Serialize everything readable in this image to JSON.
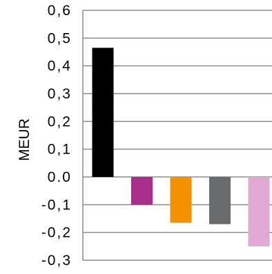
{
  "chart_data": {
    "type": "bar",
    "title": "",
    "xlabel": "",
    "ylabel": "MEUR",
    "ylim": [
      -0.3,
      0.6
    ],
    "y_ticks": [
      "0,6",
      "0,5",
      "0,4",
      "0,3",
      "0,2",
      "0,1",
      "0.0",
      "-0,1",
      "-0,2",
      "-0,3"
    ],
    "y_tick_values": [
      0.6,
      0.5,
      0.4,
      0.3,
      0.2,
      0.1,
      0.0,
      -0.1,
      -0.2,
      -0.3
    ],
    "grid": true,
    "categories": [
      "",
      "",
      "",
      "",
      ""
    ],
    "values": [
      0.465,
      -0.1,
      -0.165,
      -0.17,
      -0.25
    ],
    "colors": [
      "#000000",
      "#a8308c",
      "#f39200",
      "#6a6b6d",
      "#e2a8d4"
    ]
  }
}
